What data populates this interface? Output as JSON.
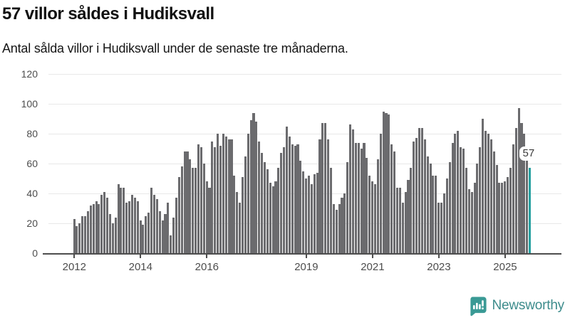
{
  "header": {
    "title": "57 villor såldes i Hudiksvall",
    "subtitle": "Antal sålda villor i Hudiksvall under de senaste tre månaderna."
  },
  "chart_data": {
    "type": "bar",
    "title": "57 villor såldes i Hudiksvall",
    "subtitle": "Antal sålda villor i Hudiksvall under de senaste tre månaderna.",
    "start_year": 2012,
    "months_per_bar": 1,
    "ylim": [
      0,
      120
    ],
    "y_ticks": [
      0,
      20,
      40,
      60,
      80,
      100,
      120
    ],
    "x_ticks": [
      {
        "label": "2012",
        "bar_index": 0
      },
      {
        "label": "2014",
        "bar_index": 24
      },
      {
        "label": "2016",
        "bar_index": 48
      },
      {
        "label": "2019",
        "bar_index": 84
      },
      {
        "label": "2021",
        "bar_index": 108
      },
      {
        "label": "2023",
        "bar_index": 132
      },
      {
        "label": "2025",
        "bar_index": 156
      }
    ],
    "grid": true,
    "bar_color": "#6b6b6e",
    "highlight_color": "#26a0a0",
    "highlight": {
      "bar_index": 165,
      "value": 57,
      "label": "57"
    },
    "values": [
      23,
      18,
      20,
      25,
      25,
      28,
      32,
      33,
      35,
      33,
      39,
      41,
      37,
      26,
      20,
      24,
      46,
      44,
      44,
      34,
      35,
      39,
      37,
      35,
      22,
      19,
      25,
      27,
      44,
      39,
      36,
      28,
      22,
      26,
      34,
      12,
      24,
      37,
      51,
      58,
      68,
      68,
      63,
      57,
      57,
      73,
      71,
      60,
      48,
      44,
      75,
      71,
      80,
      72,
      80,
      78,
      76,
      76,
      52,
      41,
      34,
      51,
      65,
      80,
      89,
      94,
      88,
      75,
      67,
      61,
      56,
      47,
      45,
      48,
      57,
      67,
      71,
      85,
      78,
      73,
      72,
      73,
      62,
      55,
      50,
      52,
      46,
      53,
      54,
      76,
      87,
      87,
      76,
      57,
      33,
      29,
      33,
      37,
      40,
      61,
      86,
      83,
      74,
      74,
      70,
      74,
      64,
      52,
      48,
      46,
      63,
      80,
      95,
      94,
      93,
      73,
      68,
      44,
      44,
      34,
      41,
      49,
      57,
      75,
      77,
      84,
      84,
      76,
      65,
      60,
      52,
      52,
      34,
      34,
      40,
      50,
      61,
      74,
      80,
      82,
      71,
      70,
      57,
      43,
      41,
      47,
      60,
      71,
      90,
      82,
      80,
      76,
      68,
      59,
      47,
      47,
      48,
      51,
      57,
      73,
      84,
      97,
      87,
      80,
      70,
      57
    ]
  },
  "footer": {
    "brand": "Newsworthy",
    "logo_icon": "newsworthy-speech-bubble-chart-icon",
    "brand_color": "#3d8c8c",
    "icon_color": "#3a9a95"
  }
}
